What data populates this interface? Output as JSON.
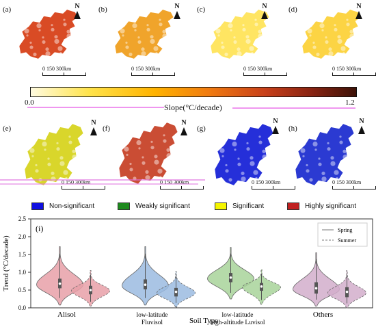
{
  "panels_top": [
    {
      "label": "(a)",
      "north": "N",
      "scale_text": "0  150  300km",
      "fill": "#d8421a"
    },
    {
      "label": "(b)",
      "north": "N",
      "scale_text": "0  150  300km",
      "fill": "#f0a020"
    },
    {
      "label": "(c)",
      "north": "N",
      "scale_text": "0  150  300km",
      "fill": "#ffe45a"
    },
    {
      "label": "(d)",
      "north": "N",
      "scale_text": "0  150  300km",
      "fill": "#fcd23a"
    }
  ],
  "colorbar": {
    "min_label": "0.0",
    "max_label": "1.2",
    "title": "Slope(°C/decade)"
  },
  "panels_mid": [
    {
      "label": "(e)",
      "north": "N",
      "scale_text": "0  150  300km",
      "fill": "#d8d420"
    },
    {
      "label": "(f)",
      "north": "N",
      "scale_text": "0  150  300km",
      "fill": "#c8442a"
    },
    {
      "label": "(g)",
      "north": "N",
      "scale_text": "0  150  300km",
      "fill": "#1a24d8"
    },
    {
      "label": "(h)",
      "north": "N",
      "scale_text": "0  150  300km",
      "fill": "#2030d0"
    }
  ],
  "legend": [
    {
      "label": "Non-significant",
      "color": "#1010e0"
    },
    {
      "label": "Weakly significant",
      "color": "#1e8a1e"
    },
    {
      "label": "Significant",
      "color": "#f5f500"
    },
    {
      "label": "Highly significant",
      "color": "#c02020"
    }
  ],
  "chart_data": {
    "type": "violin",
    "panel_label": "(i)",
    "xlabel": "Soil Type",
    "ylabel": "Trend (°C/decade)",
    "ylim": [
      0,
      2.5
    ],
    "yticks": [
      0.0,
      0.5,
      1.0,
      1.5,
      2.0,
      2.5
    ],
    "categories": [
      "Alisol",
      "low-latitude Fluvisol",
      "low-latitude high-altitude Luvisol",
      "Others"
    ],
    "category_display": [
      [
        "Alisol"
      ],
      [
        "low-latitude",
        "Fluvisol"
      ],
      [
        "low-latitude",
        "high-altitude Luvisol"
      ],
      [
        "Others"
      ]
    ],
    "legend": [
      {
        "label": "Spring",
        "style": "solid"
      },
      {
        "label": "Summer",
        "style": "dashed"
      }
    ],
    "colors": [
      "#e8a0a8",
      "#9bbbe0",
      "#a8d49a",
      "#d2aecb"
    ],
    "series": [
      {
        "name": "Spring",
        "violins": [
          {
            "min": 0.08,
            "q1": 0.55,
            "median": 0.68,
            "q3": 0.82,
            "max": 1.72,
            "mode": 0.65
          },
          {
            "min": 0.08,
            "q1": 0.52,
            "median": 0.65,
            "q3": 0.8,
            "max": 1.72,
            "mode": 0.62
          },
          {
            "min": 0.25,
            "q1": 0.72,
            "median": 0.85,
            "q3": 0.98,
            "max": 1.7,
            "mode": 0.82
          },
          {
            "min": 0.05,
            "q1": 0.4,
            "median": 0.55,
            "q3": 0.72,
            "max": 1.55,
            "mode": 0.52
          }
        ]
      },
      {
        "name": "Summer",
        "violins": [
          {
            "min": 0.05,
            "q1": 0.38,
            "median": 0.5,
            "q3": 0.62,
            "max": 1.05,
            "mode": 0.48
          },
          {
            "min": 0.02,
            "q1": 0.32,
            "median": 0.45,
            "q3": 0.56,
            "max": 1.02,
            "mode": 0.42
          },
          {
            "min": 0.1,
            "q1": 0.48,
            "median": 0.6,
            "q3": 0.7,
            "max": 1.08,
            "mode": 0.58
          },
          {
            "min": 0.0,
            "q1": 0.3,
            "median": 0.45,
            "q3": 0.58,
            "max": 1.05,
            "mode": 0.42
          }
        ]
      }
    ]
  }
}
